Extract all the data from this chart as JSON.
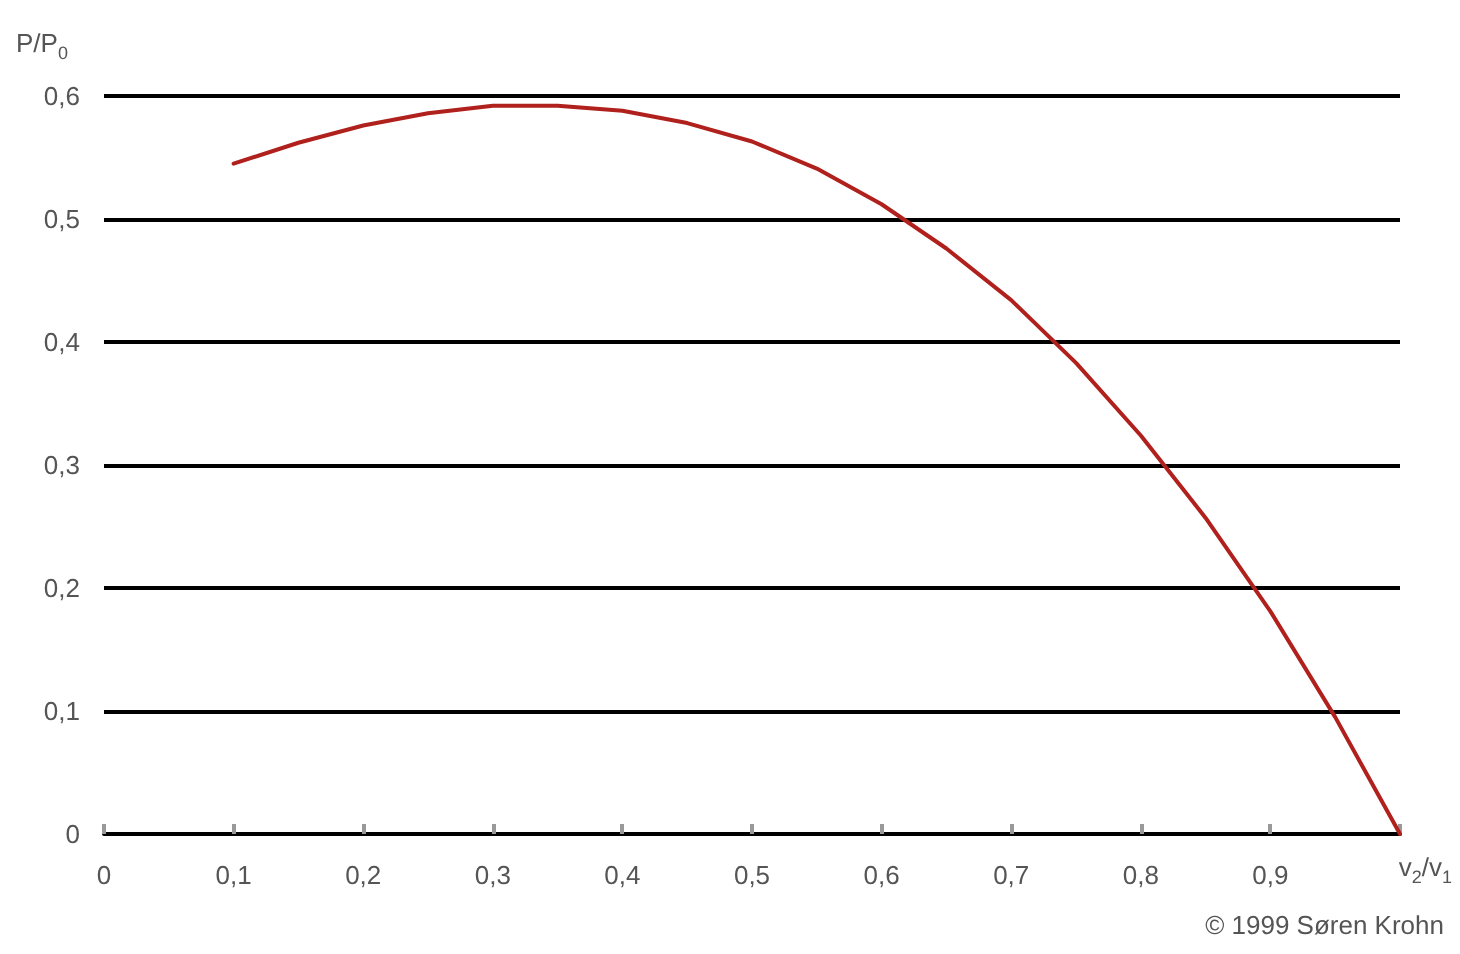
{
  "chart_data": {
    "type": "line",
    "xlabel": "v$_{2}$/v$_{1}$",
    "ylabel": "P/P$_{0}$",
    "x": [
      0.1,
      0.15,
      0.2,
      0.25,
      0.3,
      0.35,
      0.4,
      0.45,
      0.5,
      0.55,
      0.6,
      0.65,
      0.7,
      0.75,
      0.8,
      0.85,
      0.9,
      0.95,
      1
    ],
    "series": [
      {
        "color": "#b0201c",
        "values": [
          0.545,
          0.562,
          0.576,
          0.586,
          0.592,
          0.592,
          0.588,
          0.578,
          0.563,
          0.541,
          0.512,
          0.476,
          0.434,
          0.383,
          0.324,
          0.257,
          0.181,
          0.095,
          0
        ]
      }
    ],
    "xlim": [
      0,
      1
    ],
    "ylim": [
      0,
      0.6
    ],
    "xticks": [
      {
        "value": 0,
        "label": "0"
      },
      {
        "value": 0.1,
        "label": "0,1"
      },
      {
        "value": 0.2,
        "label": "0,2"
      },
      {
        "value": 0.3,
        "label": "0,3"
      },
      {
        "value": 0.4,
        "label": "0,4"
      },
      {
        "value": 0.5,
        "label": "0,5"
      },
      {
        "value": 0.6,
        "label": "0,6"
      },
      {
        "value": 0.7,
        "label": "0,7"
      },
      {
        "value": 0.8,
        "label": "0,8"
      },
      {
        "value": 0.9,
        "label": "0,9"
      },
      {
        "value": 1,
        "label": null
      }
    ],
    "yticks": [
      {
        "value": 0,
        "label": "0"
      },
      {
        "value": 0.1,
        "label": "0,1"
      },
      {
        "value": 0.2,
        "label": "0,2"
      },
      {
        "value": 0.3,
        "label": "0,3"
      },
      {
        "value": 0.4,
        "label": "0,4"
      },
      {
        "value": 0.5,
        "label": "0,5"
      },
      {
        "value": 0.6,
        "label": "0,6"
      }
    ],
    "grid": "y",
    "marker": "none",
    "line_style": "solid",
    "annotations": [
      "© 1999 Søren Krohn"
    ]
  }
}
